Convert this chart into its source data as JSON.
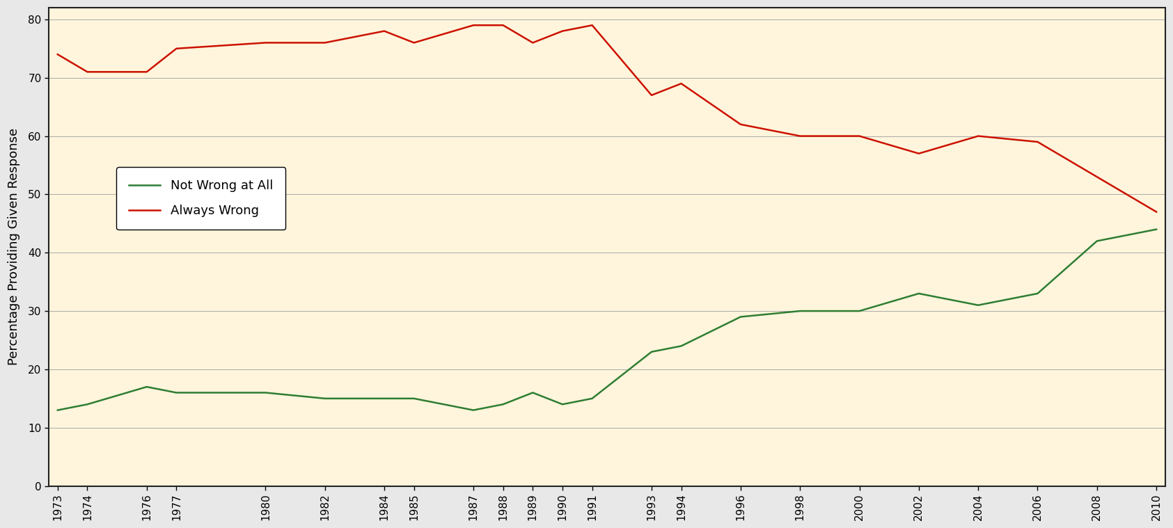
{
  "years": [
    1973,
    1974,
    1976,
    1977,
    1980,
    1982,
    1984,
    1985,
    1987,
    1988,
    1989,
    1990,
    1991,
    1993,
    1994,
    1996,
    1998,
    2000,
    2002,
    2004,
    2006,
    2008,
    2010
  ],
  "not_wrong_at_all": [
    13,
    14,
    17,
    16,
    16,
    15,
    15,
    15,
    13,
    14,
    16,
    14,
    15,
    23,
    24,
    29,
    30,
    30,
    33,
    31,
    33,
    42,
    44
  ],
  "always_wrong": [
    74,
    71,
    71,
    75,
    76,
    76,
    78,
    76,
    79,
    79,
    76,
    78,
    79,
    67,
    69,
    62,
    60,
    60,
    57,
    60,
    59,
    53,
    47
  ],
  "fig_bg_color": "#E8E8E8",
  "plot_bg_color": "#FFF5DC",
  "line_color_green": "#2E7D32",
  "line_color_red": "#CC1100",
  "ylabel": "Percentage Providing Given Response",
  "legend_labels": [
    "Not Wrong at All",
    "Always Wrong"
  ],
  "ylim": [
    0,
    82
  ],
  "yticks": [
    0,
    10,
    20,
    30,
    40,
    50,
    60,
    70,
    80
  ],
  "grid_color": "#AAAAAA",
  "spine_color": "#222222",
  "label_fontsize": 13,
  "tick_fontsize": 11,
  "legend_fontsize": 13,
  "linewidth": 1.8
}
